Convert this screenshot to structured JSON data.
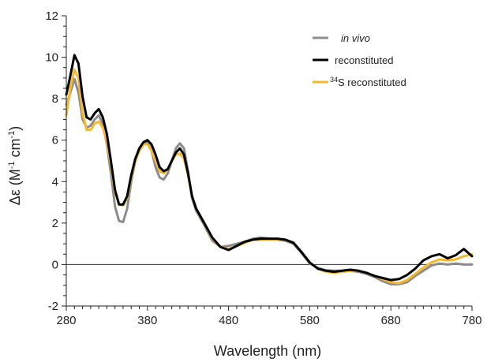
{
  "chart_data": {
    "type": "line",
    "xlabel": "Wavelength (nm)",
    "ylabel_parts": {
      "prefix": "Δε (M",
      "sup1": "-1",
      "mid": " cm",
      "sup2": "-1",
      "suffix": ")"
    },
    "xlim": [
      280,
      780
    ],
    "ylim": [
      -2,
      12
    ],
    "xticks": [
      280,
      380,
      480,
      580,
      680,
      780
    ],
    "yticks": [
      -2,
      0,
      2,
      4,
      6,
      8,
      10,
      12
    ],
    "x_minor_step": 10,
    "y_minor_step": 0.5,
    "zero_line": true,
    "grid": false,
    "legend": "top-right",
    "series": [
      {
        "name": "in vivo",
        "name_style": "italic",
        "color": "#8c8c8c",
        "x": [
          280,
          285,
          290,
          295,
          300,
          305,
          310,
          315,
          320,
          325,
          330,
          335,
          340,
          345,
          350,
          355,
          360,
          365,
          370,
          375,
          380,
          385,
          390,
          395,
          400,
          405,
          410,
          415,
          420,
          425,
          430,
          435,
          440,
          450,
          460,
          470,
          480,
          490,
          500,
          510,
          520,
          530,
          540,
          550,
          560,
          570,
          580,
          590,
          600,
          610,
          620,
          630,
          640,
          650,
          660,
          670,
          680,
          690,
          700,
          710,
          720,
          730,
          740,
          750,
          760,
          770,
          780
        ],
        "y": [
          7.7,
          8.3,
          8.95,
          8.3,
          7.0,
          6.6,
          6.7,
          7.0,
          7.2,
          6.8,
          5.8,
          4.4,
          2.8,
          2.1,
          2.05,
          2.7,
          4.0,
          5.0,
          5.5,
          5.8,
          5.9,
          5.5,
          4.7,
          4.2,
          4.1,
          4.4,
          5.0,
          5.6,
          5.85,
          5.6,
          4.5,
          3.2,
          2.6,
          1.9,
          1.15,
          0.85,
          0.9,
          1.0,
          1.1,
          1.25,
          1.3,
          1.25,
          1.2,
          1.15,
          1.0,
          0.55,
          0.05,
          -0.15,
          -0.28,
          -0.3,
          -0.3,
          -0.3,
          -0.35,
          -0.45,
          -0.6,
          -0.8,
          -0.95,
          -0.95,
          -0.85,
          -0.55,
          -0.3,
          -0.05,
          0.05,
          0.0,
          0.05,
          0.0,
          0.0
        ]
      },
      {
        "name": "reconstituted",
        "name_style": "normal",
        "color": "#000000",
        "x": [
          280,
          285,
          290,
          295,
          300,
          305,
          310,
          315,
          320,
          325,
          330,
          335,
          340,
          345,
          350,
          355,
          360,
          365,
          370,
          375,
          380,
          385,
          390,
          395,
          400,
          405,
          410,
          415,
          420,
          425,
          430,
          435,
          440,
          450,
          460,
          470,
          480,
          490,
          500,
          510,
          520,
          530,
          540,
          550,
          560,
          570,
          580,
          590,
          600,
          610,
          620,
          630,
          640,
          650,
          660,
          670,
          680,
          690,
          700,
          710,
          720,
          730,
          740,
          750,
          760,
          770,
          780
        ],
        "y": [
          8.2,
          9.1,
          10.1,
          9.7,
          8.1,
          7.1,
          7.0,
          7.3,
          7.5,
          7.1,
          6.3,
          5.0,
          3.6,
          2.9,
          2.9,
          3.3,
          4.3,
          5.1,
          5.6,
          5.9,
          6.0,
          5.8,
          5.3,
          4.7,
          4.5,
          4.6,
          5.0,
          5.4,
          5.6,
          5.3,
          4.4,
          3.3,
          2.7,
          2.0,
          1.3,
          0.85,
          0.7,
          0.9,
          1.1,
          1.2,
          1.25,
          1.25,
          1.25,
          1.2,
          1.05,
          0.6,
          0.1,
          -0.2,
          -0.3,
          -0.35,
          -0.3,
          -0.25,
          -0.3,
          -0.4,
          -0.55,
          -0.65,
          -0.75,
          -0.7,
          -0.5,
          -0.2,
          0.2,
          0.4,
          0.5,
          0.3,
          0.45,
          0.75,
          0.4
        ]
      },
      {
        "name": "S reconstituted",
        "name_sup": "34",
        "name_style": "normal",
        "color": "#f5b82e",
        "x": [
          280,
          285,
          290,
          295,
          300,
          305,
          310,
          315,
          320,
          325,
          330,
          335,
          340,
          345,
          350,
          355,
          360,
          365,
          370,
          375,
          380,
          385,
          390,
          395,
          400,
          405,
          410,
          415,
          420,
          425,
          430,
          435,
          440,
          450,
          460,
          470,
          480,
          490,
          500,
          510,
          520,
          530,
          540,
          550,
          560,
          570,
          580,
          590,
          600,
          610,
          620,
          630,
          640,
          650,
          660,
          670,
          680,
          690,
          700,
          710,
          720,
          730,
          740,
          750,
          760,
          770,
          780
        ],
        "y": [
          7.2,
          8.5,
          9.4,
          9.0,
          7.3,
          6.5,
          6.5,
          6.8,
          6.9,
          6.6,
          5.9,
          4.8,
          3.5,
          2.9,
          2.85,
          3.2,
          4.2,
          5.0,
          5.5,
          5.8,
          5.8,
          5.5,
          5.0,
          4.5,
          4.4,
          4.6,
          5.0,
          5.3,
          5.35,
          5.1,
          4.3,
          3.3,
          2.7,
          2.0,
          1.25,
          0.85,
          0.75,
          0.9,
          1.05,
          1.2,
          1.2,
          1.2,
          1.2,
          1.2,
          1.05,
          0.6,
          0.1,
          -0.2,
          -0.35,
          -0.4,
          -0.35,
          -0.3,
          -0.3,
          -0.4,
          -0.55,
          -0.7,
          -0.85,
          -0.9,
          -0.75,
          -0.45,
          -0.15,
          0.1,
          0.25,
          0.2,
          0.25,
          0.4,
          0.5
        ]
      }
    ]
  }
}
